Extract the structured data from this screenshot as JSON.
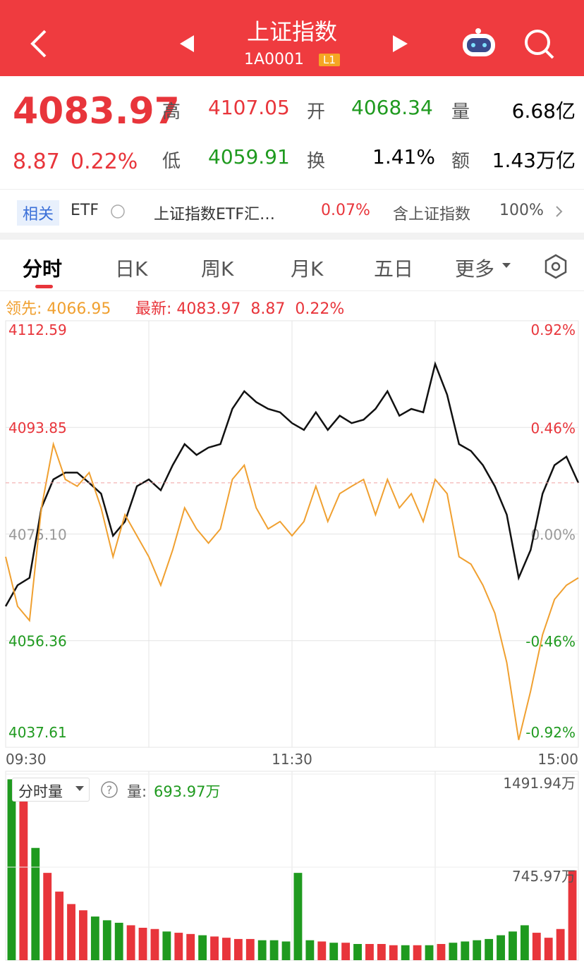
{
  "header": {
    "title": "上证指数",
    "code": "1A0001",
    "badge": "L1"
  },
  "quote": {
    "price": "4083.97",
    "change": "8.87",
    "change_pct": "0.22%",
    "high_label": "高",
    "high": "4107.05",
    "open_label": "开",
    "open": "4068.34",
    "volume_label": "量",
    "volume": "6.68亿",
    "low_label": "低",
    "low": "4059.91",
    "turnover_label": "换",
    "turnover": "1.41%",
    "amount_label": "额",
    "amount": "1.43万亿"
  },
  "related": {
    "badge": "相关",
    "etf": "ETF",
    "name": "上证指数ETF汇…",
    "pct": "0.07%",
    "holding": "含上证指数",
    "holding_pct": "100%"
  },
  "tabs": [
    "分时",
    "日K",
    "周K",
    "月K",
    "五日",
    "更多"
  ],
  "chart_data": [
    {
      "type": "line",
      "lead_label": "领先:",
      "lead": "4066.95",
      "last_label": "最新:",
      "last": "4083.97",
      "change": "8.87",
      "change_pct": "0.22%",
      "xlim": [
        0,
        240
      ],
      "xticks": [
        {
          "value": 0,
          "label": "09:30"
        },
        {
          "value": 120,
          "label": "11:30"
        },
        {
          "value": 240,
          "label": "15:00"
        }
      ],
      "ylim": [
        4037.61,
        4112.59
      ],
      "yticks": [
        4112.59,
        4093.85,
        {
          "value": 4075.1,
          "label": "4075.10"
        },
        4056.36,
        4037.61
      ],
      "y2lim": [
        -0.92,
        0.92
      ],
      "y2ticks": [
        {
          "value": 0.92,
          "label": "0.92%"
        },
        {
          "value": 0.46,
          "label": "0.46%"
        },
        {
          "value": 0,
          "label": "0.00%"
        },
        {
          "value": -0.46,
          "label": "-0.46%"
        },
        {
          "value": -0.92,
          "label": "-0.92%"
        }
      ],
      "grid": true,
      "x": [
        0,
        5,
        10,
        15,
        20,
        25,
        30,
        35,
        40,
        45,
        50,
        55,
        60,
        65,
        70,
        75,
        80,
        85,
        90,
        95,
        100,
        105,
        110,
        115,
        120,
        125,
        130,
        135,
        140,
        145,
        150,
        155,
        160,
        165,
        170,
        175,
        180,
        185,
        190,
        195,
        200,
        205,
        210,
        215,
        220,
        225,
        230,
        235,
        240
      ],
      "series": [
        {
          "color": "#111111",
          "values": [
            4062.4,
            4066.1,
            4067.4,
            4079.7,
            4084.7,
            4085.9,
            4085.9,
            4084.1,
            4082.2,
            4074.8,
            4077.3,
            4083.5,
            4084.7,
            4082.8,
            4087.2,
            4090.9,
            4089.0,
            4090.3,
            4090.9,
            4097.1,
            4100.2,
            4098.3,
            4097.1,
            4096.5,
            4094.6,
            4093.4,
            4096.5,
            4093.4,
            4095.9,
            4094.6,
            4095.2,
            4097.1,
            4100.2,
            4095.9,
            4097.1,
            4096.5,
            4105.0,
            4099.6,
            4090.9,
            4089.7,
            4087.2,
            4083.5,
            4078.5,
            4067.4,
            4072.3,
            4082.2,
            4087.2,
            4088.7,
            4084.1
          ]
        },
        {
          "color": "#f0a030",
          "values": [
            4071.1,
            4062.4,
            4059.9,
            4079.7,
            4090.9,
            4084.7,
            4083.5,
            4085.9,
            4079.7,
            4071.1,
            4078.5,
            4074.8,
            4071.1,
            4066.1,
            4072.3,
            4079.7,
            4076.0,
            4073.5,
            4076.0,
            4084.7,
            4087.2,
            4079.7,
            4076.0,
            4077.3,
            4074.8,
            4077.3,
            4083.5,
            4077.3,
            4082.2,
            4083.5,
            4084.7,
            4078.5,
            4084.7,
            4079.7,
            4082.2,
            4077.3,
            4084.7,
            4082.2,
            4071.1,
            4069.8,
            4066.1,
            4061.2,
            4052.5,
            4038.9,
            4047.5,
            4057.4,
            4063.6,
            4066.1,
            4067.4
          ]
        }
      ]
    },
    {
      "type": "bar",
      "selector": "分时量",
      "volume_label": "量:",
      "volume": "693.97万",
      "xlim": [
        0,
        240
      ],
      "ylim": [
        0,
        1491.94
      ],
      "yticks": [
        {
          "value": 1491.94,
          "label": "1491.94万"
        },
        {
          "value": 745.97,
          "label": "745.97万"
        }
      ],
      "x": [
        2.5,
        7.5,
        12.5,
        17.5,
        22.5,
        27.5,
        32.5,
        37.5,
        42.5,
        47.5,
        52.5,
        57.5,
        62.5,
        67.5,
        72.5,
        77.5,
        82.5,
        87.5,
        92.5,
        97.5,
        102.5,
        107.5,
        112.5,
        117.5,
        122.5,
        127.5,
        132.5,
        137.5,
        142.5,
        147.5,
        152.5,
        157.5,
        162.5,
        167.5,
        172.5,
        177.5,
        182.5,
        187.5,
        192.5,
        197.5,
        202.5,
        207.5,
        212.5,
        217.5,
        222.5,
        227.5,
        232.5,
        237.5
      ],
      "values": [
        1450,
        1300,
        900,
        700,
        550,
        450,
        400,
        350,
        320,
        300,
        280,
        260,
        250,
        230,
        220,
        210,
        200,
        190,
        180,
        170,
        170,
        160,
        160,
        150,
        700,
        160,
        150,
        140,
        140,
        130,
        130,
        130,
        120,
        120,
        120,
        120,
        130,
        140,
        150,
        160,
        170,
        200,
        230,
        280,
        220,
        180,
        250,
        720
      ],
      "bar_colors": [
        "#1f9a1f",
        "#e8353b",
        "#1f9a1f",
        "#e8353b",
        "#e8353b",
        "#e8353b",
        "#e8353b",
        "#1f9a1f",
        "#1f9a1f",
        "#1f9a1f",
        "#e8353b",
        "#e8353b",
        "#e8353b",
        "#1f9a1f",
        "#e8353b",
        "#e8353b",
        "#1f9a1f",
        "#e8353b",
        "#e8353b",
        "#e8353b",
        "#e8353b",
        "#1f9a1f",
        "#1f9a1f",
        "#1f9a1f",
        "#1f9a1f",
        "#1f9a1f",
        "#e8353b",
        "#1f9a1f",
        "#e8353b",
        "#1f9a1f",
        "#e8353b",
        "#e8353b",
        "#e8353b",
        "#1f9a1f",
        "#e8353b",
        "#1f9a1f",
        "#e8353b",
        "#1f9a1f",
        "#1f9a1f",
        "#1f9a1f",
        "#1f9a1f",
        "#1f9a1f",
        "#1f9a1f",
        "#1f9a1f",
        "#e8353b",
        "#e8353b",
        "#e8353b",
        "#e8353b"
      ]
    }
  ]
}
